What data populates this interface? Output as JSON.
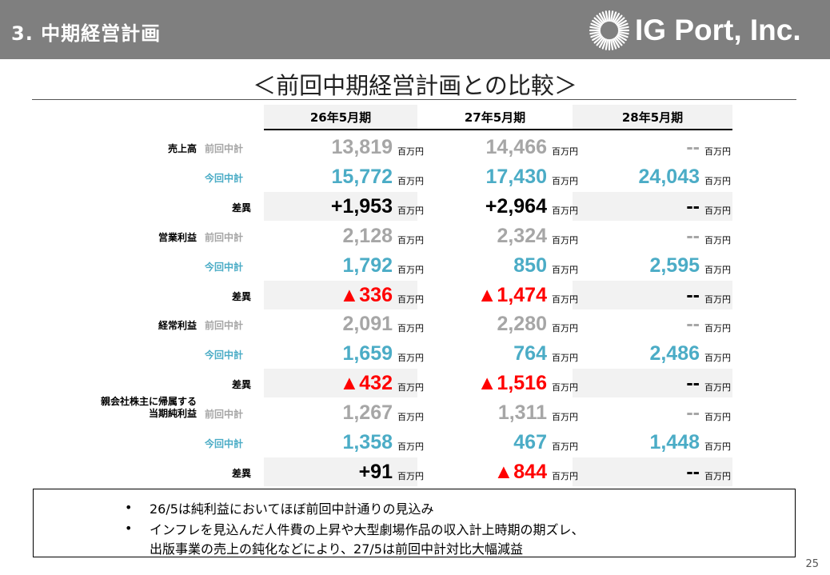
{
  "header": {
    "title": "3. 中期経営計画",
    "logo_text": "IG Port, Inc."
  },
  "compare_title": "＜前回中期経営計画との比較＞",
  "columns": [
    "26年5月期",
    "27年5月期",
    "28年5月期"
  ],
  "unit": "百万円",
  "kinds": {
    "prev": "前回中計",
    "curr": "今回中計",
    "diff": "差異"
  },
  "rows": [
    {
      "item": "売上高",
      "prev": [
        "13,819",
        "14,466",
        "--"
      ],
      "curr": [
        "15,772",
        "17,430",
        "24,043"
      ],
      "diff": [
        "+1,953",
        "+2,964",
        "--"
      ]
    },
    {
      "item": "営業利益",
      "prev": [
        "2,128",
        "2,324",
        "--"
      ],
      "curr": [
        "1,792",
        "850",
        "2,595"
      ],
      "diff": [
        "▲336",
        "▲1,474",
        "--"
      ]
    },
    {
      "item": "経常利益",
      "prev": [
        "2,091",
        "2,280",
        "--"
      ],
      "curr": [
        "1,659",
        "764",
        "2,486"
      ],
      "diff": [
        "▲432",
        "▲1,516",
        "--"
      ]
    },
    {
      "item_line1": "親会社株主に帰属する",
      "item_line2": "当期純利益",
      "prev": [
        "1,267",
        "1,311",
        "--"
      ],
      "curr": [
        "1,358",
        "467",
        "1,448"
      ],
      "diff": [
        "+91",
        "▲844",
        "--"
      ]
    }
  ],
  "notes": [
    "26/5は純利益においてほぼ前回中計通りの見込み",
    "インフレを見込んだ人件費の上昇や大型劇場作品の収入計上時期の期ズレ、",
    "出版事業の売上の鈍化などにより、27/5は前回中計対比大幅減益"
  ],
  "bullet": "•",
  "page_number": "25",
  "colors": {
    "header_bg": "#7f7f7f",
    "prev": "#a6a6a6",
    "curr": "#4bacc6",
    "negative": "#ff0000"
  }
}
